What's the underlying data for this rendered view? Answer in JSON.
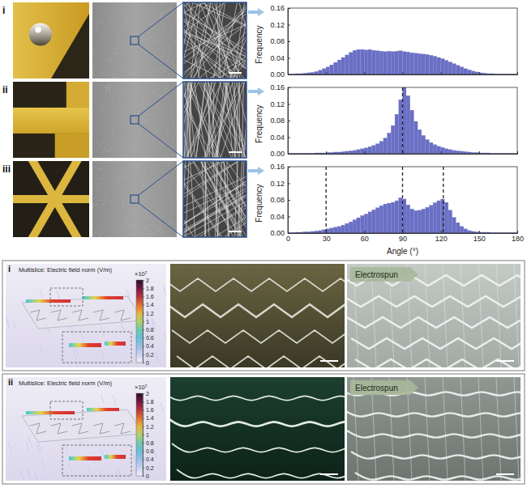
{
  "chart_data": [
    {
      "type": "histogram",
      "ylabel": "Frequency",
      "color": "#6a6fc6",
      "bins": [
        0,
        3,
        6,
        9,
        12,
        15,
        18,
        21,
        24,
        27,
        30,
        33,
        36,
        39,
        42,
        45,
        48,
        51,
        54,
        57,
        60,
        63,
        66,
        69,
        72,
        75,
        78,
        81,
        84,
        87,
        90,
        93,
        96,
        99,
        102,
        105,
        108,
        111,
        114,
        117,
        120,
        123,
        126,
        129,
        132,
        135,
        138,
        141,
        144,
        147,
        150,
        153,
        156,
        159,
        162,
        165,
        168,
        171,
        174,
        177,
        180
      ],
      "values": [
        0.001,
        0.001,
        0.002,
        0.002,
        0.003,
        0.004,
        0.005,
        0.007,
        0.01,
        0.014,
        0.018,
        0.023,
        0.029,
        0.035,
        0.041,
        0.047,
        0.053,
        0.058,
        0.06,
        0.06,
        0.059,
        0.06,
        0.058,
        0.057,
        0.056,
        0.055,
        0.056,
        0.055,
        0.056,
        0.057,
        0.055,
        0.054,
        0.052,
        0.051,
        0.05,
        0.049,
        0.048,
        0.046,
        0.044,
        0.041,
        0.038,
        0.034,
        0.03,
        0.026,
        0.022,
        0.018,
        0.014,
        0.011,
        0.008,
        0.006,
        0.004,
        0.003,
        0.002,
        0.002,
        0.001,
        0.001,
        0.001,
        0.001,
        0.001,
        0.001
      ],
      "xlim": [
        0,
        180
      ],
      "ylim": [
        0,
        0.16
      ],
      "xticks": [
        0,
        30,
        60,
        90,
        120,
        150,
        180
      ],
      "yticks": [
        {
          "value": 0,
          "label": "0.00"
        },
        {
          "value": 0.04,
          "label": "0.04"
        },
        {
          "value": 0.08,
          "label": "0.08"
        },
        {
          "value": 0.12,
          "label": "0.12"
        },
        {
          "value": 0.16,
          "label": "0.16"
        }
      ],
      "tick_labels": "y"
    },
    {
      "type": "histogram",
      "ylabel": "Frequency",
      "color": "#6a6fc6",
      "bins": [
        0,
        3,
        6,
        9,
        12,
        15,
        18,
        21,
        24,
        27,
        30,
        33,
        36,
        39,
        42,
        45,
        48,
        51,
        54,
        57,
        60,
        63,
        66,
        69,
        72,
        75,
        78,
        81,
        84,
        87,
        90,
        93,
        96,
        99,
        102,
        105,
        108,
        111,
        114,
        117,
        120,
        123,
        126,
        129,
        132,
        135,
        138,
        141,
        144,
        147,
        150,
        153,
        156,
        159,
        162,
        165,
        168,
        171,
        174,
        177,
        180
      ],
      "values": [
        0.001,
        0.001,
        0.001,
        0.001,
        0.001,
        0.001,
        0.001,
        0.002,
        0.002,
        0.002,
        0.003,
        0.003,
        0.004,
        0.004,
        0.005,
        0.006,
        0.007,
        0.008,
        0.01,
        0.012,
        0.014,
        0.017,
        0.02,
        0.024,
        0.03,
        0.038,
        0.05,
        0.068,
        0.095,
        0.13,
        0.16,
        0.14,
        0.105,
        0.078,
        0.058,
        0.044,
        0.034,
        0.027,
        0.022,
        0.018,
        0.015,
        0.012,
        0.01,
        0.008,
        0.007,
        0.006,
        0.005,
        0.004,
        0.003,
        0.003,
        0.002,
        0.002,
        0.002,
        0.001,
        0.001,
        0.001,
        0.001,
        0.001,
        0.001,
        0.001
      ],
      "xlim": [
        0,
        180
      ],
      "ylim": [
        0,
        0.16
      ],
      "xticks": [
        0,
        30,
        60,
        90,
        120,
        150,
        180
      ],
      "yticks": [
        {
          "value": 0,
          "label": "0.00"
        },
        {
          "value": 0.04,
          "label": "0.04"
        },
        {
          "value": 0.08,
          "label": "0.08"
        },
        {
          "value": 0.12,
          "label": "0.12"
        },
        {
          "value": 0.16,
          "label": "0.16"
        }
      ],
      "tick_labels": "y",
      "vlines": [
        90
      ]
    },
    {
      "type": "histogram",
      "ylabel": "Frequency",
      "xlabel": "Angle (°)",
      "color": "#6a6fc6",
      "bins": [
        0,
        3,
        6,
        9,
        12,
        15,
        18,
        21,
        24,
        27,
        30,
        33,
        36,
        39,
        42,
        45,
        48,
        51,
        54,
        57,
        60,
        63,
        66,
        69,
        72,
        75,
        78,
        81,
        84,
        87,
        90,
        93,
        96,
        99,
        102,
        105,
        108,
        111,
        114,
        117,
        120,
        123,
        126,
        129,
        132,
        135,
        138,
        141,
        144,
        147,
        150,
        153,
        156,
        159,
        162,
        165,
        168,
        171,
        174,
        177,
        180
      ],
      "values": [
        0.001,
        0.001,
        0.002,
        0.002,
        0.003,
        0.003,
        0.004,
        0.005,
        0.006,
        0.008,
        0.01,
        0.012,
        0.014,
        0.016,
        0.019,
        0.023,
        0.027,
        0.032,
        0.037,
        0.042,
        0.046,
        0.051,
        0.056,
        0.061,
        0.066,
        0.07,
        0.072,
        0.074,
        0.078,
        0.085,
        0.082,
        0.068,
        0.058,
        0.054,
        0.055,
        0.058,
        0.062,
        0.067,
        0.073,
        0.078,
        0.082,
        0.074,
        0.055,
        0.038,
        0.025,
        0.016,
        0.01,
        0.006,
        0.004,
        0.003,
        0.002,
        0.002,
        0.002,
        0.001,
        0.001,
        0.001,
        0.001,
        0.001,
        0.001,
        0.001
      ],
      "xlim": [
        0,
        180
      ],
      "ylim": [
        0,
        0.16
      ],
      "xticks": [
        0,
        30,
        60,
        90,
        120,
        150,
        180
      ],
      "yticks": [
        {
          "value": 0,
          "label": "0.00"
        },
        {
          "value": 0.04,
          "label": "0.04"
        },
        {
          "value": 0.08,
          "label": "0.08"
        },
        {
          "value": 0.12,
          "label": "0.12"
        },
        {
          "value": 0.16,
          "label": "0.16"
        }
      ],
      "vlines": [
        30,
        90,
        122
      ]
    }
  ],
  "figure": {
    "top_rows": [
      {
        "label": "i"
      },
      {
        "label": "ii"
      },
      {
        "label": "iii"
      }
    ],
    "bottom_panels": [
      {
        "label": "i",
        "simulation_title": "Multislice: Electric field norm (V/m)",
        "colorbar": {
          "label": "×10⁷",
          "range": [
            0,
            2
          ],
          "ticks": [
            0,
            0.2,
            0.4,
            0.6,
            0.8,
            1,
            1.2,
            1.4,
            1.6,
            1.8,
            2
          ]
        },
        "arrow_label": "Electrospun"
      },
      {
        "label": "ii",
        "simulation_title": "Multislice: Electric field norm (V/m)",
        "colorbar": {
          "label": "×10⁷",
          "range": [
            0,
            2
          ],
          "ticks": [
            0,
            0.2,
            0.4,
            0.6,
            0.8,
            1,
            1.2,
            1.4,
            1.6,
            1.8,
            2
          ]
        },
        "arrow_label": "Electrospun"
      }
    ]
  }
}
